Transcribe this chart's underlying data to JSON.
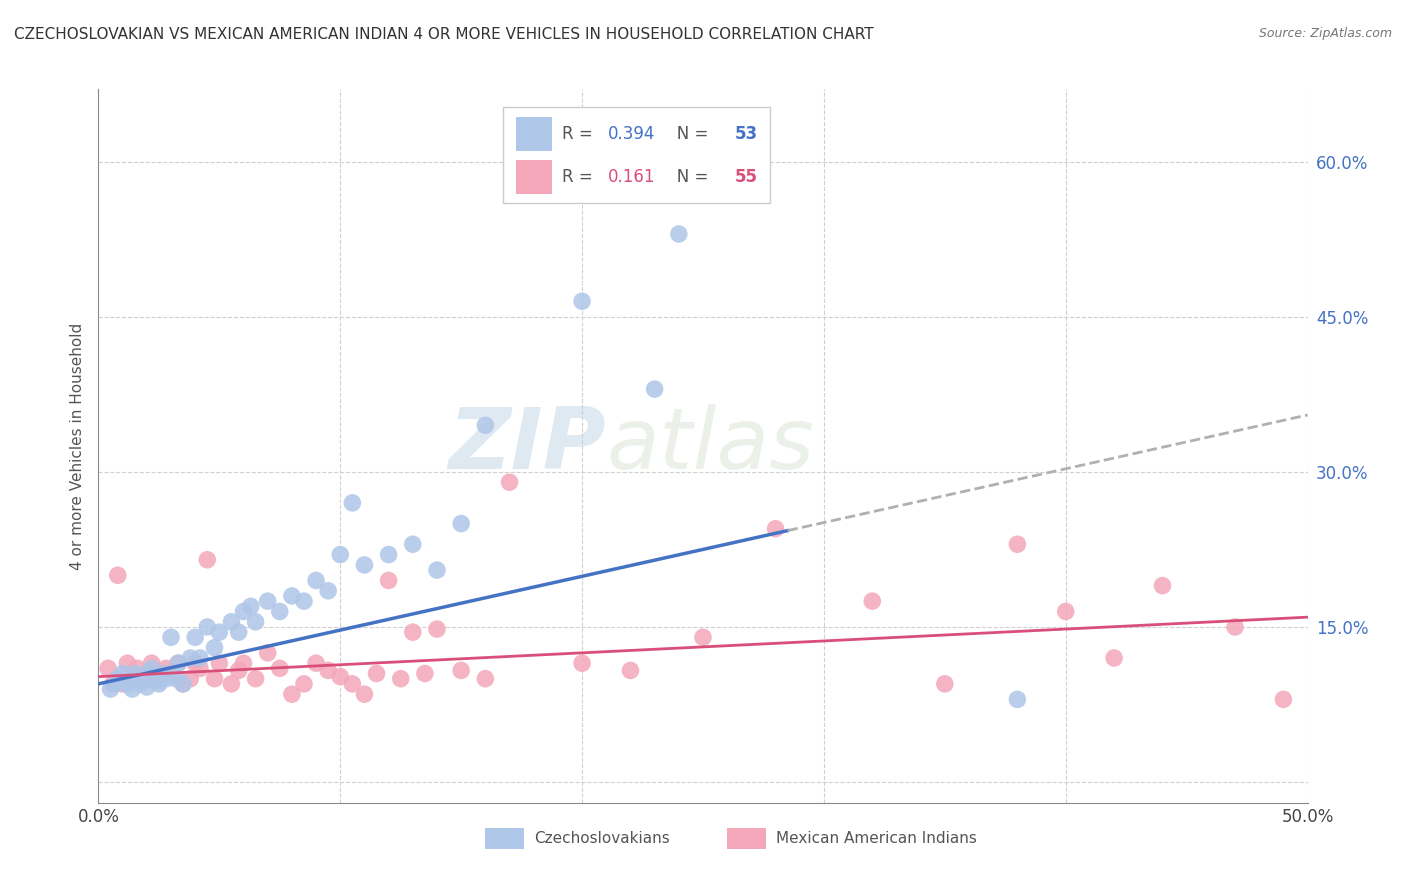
{
  "title": "CZECHOSLOVAKIAN VS MEXICAN AMERICAN INDIAN 4 OR MORE VEHICLES IN HOUSEHOLD CORRELATION CHART",
  "source": "Source: ZipAtlas.com",
  "ylabel": "4 or more Vehicles in Household",
  "ytick_values": [
    0.0,
    0.15,
    0.3,
    0.45,
    0.6
  ],
  "ytick_labels": [
    "",
    "15.0%",
    "30.0%",
    "45.0%",
    "60.0%"
  ],
  "xlim": [
    0.0,
    0.5
  ],
  "ylim": [
    -0.02,
    0.67
  ],
  "r_czech": "0.394",
  "n_czech": "53",
  "r_mexican": "0.161",
  "n_mexican": "55",
  "legend_label_czech": "Czechoslovakians",
  "legend_label_mexican": "Mexican American Indians",
  "color_czech": "#aec6e8",
  "color_czech_line": "#4472c4",
  "color_mexican": "#f4a7b9",
  "color_mexican_line": "#d94f7a",
  "color_r_czech": "#4472c4",
  "color_r_mexican": "#d94f7a",
  "watermark_zip": "ZIP",
  "watermark_atlas": "atlas",
  "czech_x": [
    0.005,
    0.007,
    0.008,
    0.01,
    0.01,
    0.012,
    0.014,
    0.015,
    0.015,
    0.016,
    0.017,
    0.018,
    0.019,
    0.02,
    0.02,
    0.022,
    0.025,
    0.025,
    0.027,
    0.028,
    0.03,
    0.032,
    0.033,
    0.035,
    0.038,
    0.04,
    0.042,
    0.045,
    0.048,
    0.05,
    0.055,
    0.058,
    0.06,
    0.063,
    0.065,
    0.07,
    0.075,
    0.08,
    0.085,
    0.09,
    0.095,
    0.1,
    0.105,
    0.11,
    0.12,
    0.13,
    0.14,
    0.15,
    0.16,
    0.2,
    0.23,
    0.24,
    0.38
  ],
  "czech_y": [
    0.09,
    0.095,
    0.1,
    0.1,
    0.105,
    0.095,
    0.09,
    0.1,
    0.105,
    0.1,
    0.095,
    0.1,
    0.098,
    0.105,
    0.092,
    0.11,
    0.098,
    0.095,
    0.105,
    0.1,
    0.14,
    0.1,
    0.115,
    0.095,
    0.12,
    0.14,
    0.12,
    0.15,
    0.13,
    0.145,
    0.155,
    0.145,
    0.165,
    0.17,
    0.155,
    0.175,
    0.165,
    0.18,
    0.175,
    0.195,
    0.185,
    0.22,
    0.27,
    0.21,
    0.22,
    0.23,
    0.205,
    0.25,
    0.345,
    0.465,
    0.38,
    0.53,
    0.08
  ],
  "mexican_x": [
    0.004,
    0.006,
    0.008,
    0.01,
    0.012,
    0.014,
    0.016,
    0.018,
    0.02,
    0.022,
    0.025,
    0.028,
    0.03,
    0.033,
    0.035,
    0.038,
    0.04,
    0.042,
    0.045,
    0.048,
    0.05,
    0.055,
    0.058,
    0.06,
    0.065,
    0.07,
    0.075,
    0.08,
    0.085,
    0.09,
    0.095,
    0.1,
    0.105,
    0.11,
    0.115,
    0.12,
    0.125,
    0.13,
    0.135,
    0.14,
    0.15,
    0.16,
    0.17,
    0.2,
    0.22,
    0.25,
    0.28,
    0.32,
    0.35,
    0.38,
    0.4,
    0.42,
    0.44,
    0.47,
    0.49
  ],
  "mexican_y": [
    0.11,
    0.095,
    0.2,
    0.095,
    0.115,
    0.1,
    0.11,
    0.098,
    0.1,
    0.115,
    0.1,
    0.11,
    0.105,
    0.115,
    0.095,
    0.1,
    0.115,
    0.11,
    0.215,
    0.1,
    0.115,
    0.095,
    0.108,
    0.115,
    0.1,
    0.125,
    0.11,
    0.085,
    0.095,
    0.115,
    0.108,
    0.102,
    0.095,
    0.085,
    0.105,
    0.195,
    0.1,
    0.145,
    0.105,
    0.148,
    0.108,
    0.1,
    0.29,
    0.115,
    0.108,
    0.14,
    0.245,
    0.175,
    0.095,
    0.23,
    0.165,
    0.12,
    0.19,
    0.15,
    0.08
  ]
}
